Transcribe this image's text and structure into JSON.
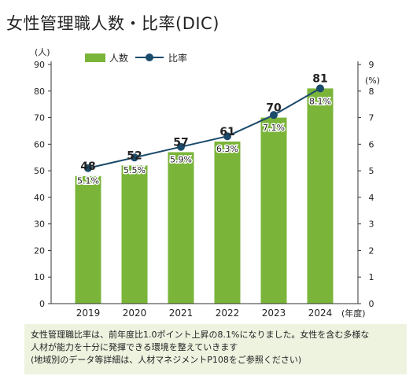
{
  "title": "女性管理職人数・比率(DIC)",
  "note": [
    "女性管理職比率は、前年度比1.0ポイント上昇の8.1%になりました。女性を含む多様な",
    "人材が能力を十分に発揮できる環境を整えていきます",
    "(地域別のデータ等詳細は、人材マネジメントP108をご参照ください)"
  ],
  "chart_data": {
    "type": "bar",
    "categories": [
      "2019",
      "2020",
      "2021",
      "2022",
      "2023",
      "2024"
    ],
    "series": [
      {
        "name": "人数",
        "type": "bar",
        "axis": "left",
        "color": "#7ab539",
        "values": [
          48,
          52,
          57,
          61,
          70,
          81
        ],
        "labels": [
          "48",
          "52",
          "57",
          "61",
          "70",
          "81"
        ]
      },
      {
        "name": "比率",
        "type": "line",
        "axis": "right",
        "color": "#1b4b6b",
        "values": [
          5.1,
          5.5,
          5.9,
          6.3,
          7.1,
          8.1
        ],
        "labels": [
          "5.1%",
          "5.5%",
          "5.9%",
          "6.3%",
          "7.1%",
          "8.1%"
        ]
      }
    ],
    "y_left": {
      "unit": "(人)",
      "range": [
        0,
        90
      ],
      "ticks": [
        "0",
        "10",
        "20",
        "30",
        "40",
        "50",
        "60",
        "70",
        "80",
        "90"
      ]
    },
    "y_right": {
      "unit": "(%)",
      "range": [
        0,
        9
      ],
      "ticks": [
        "0",
        "1",
        "2",
        "3",
        "4",
        "5",
        "6",
        "7",
        "8",
        "9"
      ]
    },
    "x_unit": "(年度)",
    "legend_position": "top",
    "grid": false
  }
}
